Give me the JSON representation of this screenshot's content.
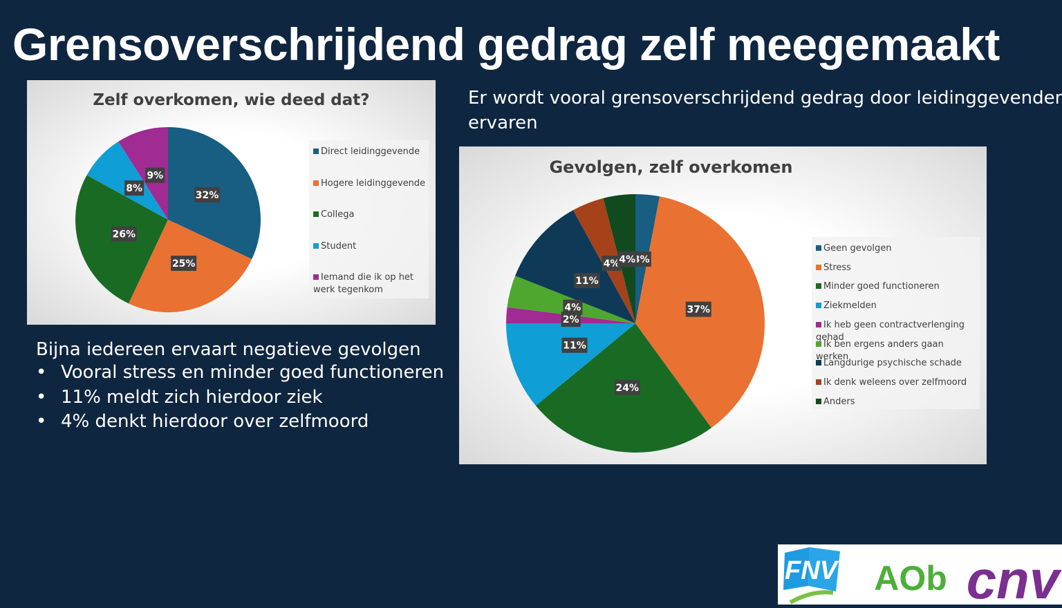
{
  "title": "Grensoverschrijdend gedrag zelf meegemaakt",
  "right_note": [
    "Er wordt vooral grensoverschrijdend gedrag door leidinggevenden",
    "ervaren"
  ],
  "left_note": {
    "heading": "Bijna iedereen ervaart negatieve gevolgen",
    "bullets": [
      "Vooral stress en minder goed functioneren",
      "11% meldt zich hierdoor ziek",
      "4% denkt hierdoor over zelfmoord"
    ]
  },
  "logos": {
    "fnv": "FNV",
    "aob": "AOb",
    "cnv": "CNV"
  },
  "chart_data": [
    {
      "type": "pie",
      "title": "Zelf overkomen, wie deed dat?",
      "categories": [
        "Direct leidinggevende",
        "Hogere leidinggevende",
        "Collega",
        "Student",
        "Iemand die ik op het werk tegenkom"
      ],
      "values": [
        32,
        25,
        26,
        8,
        9
      ],
      "labels": [
        "32%",
        "25%",
        "26%",
        "8%",
        "9%"
      ],
      "colors": [
        "#185d82",
        "#e97132",
        "#196b24",
        "#0f9ed5",
        "#a02b93"
      ],
      "legend": "right"
    },
    {
      "type": "pie",
      "title": "Gevolgen, zelf overkomen",
      "categories": [
        "Geen gevolgen",
        "Stress",
        "Minder goed functioneren",
        "Ziekmelden",
        "Ik heb geen contractverlenging gehad",
        "Ik ben ergens anders gaan werken",
        "Langdurige psychische schade",
        "Ik denk weleens over zelfmoord",
        "Anders"
      ],
      "values": [
        3,
        37,
        24,
        11,
        2,
        4,
        11,
        4,
        4
      ],
      "labels": [
        "3%",
        "37%",
        "24%",
        "11%",
        "2%",
        "4%",
        "11%",
        "4%",
        "4%"
      ],
      "colors": [
        "#185d82",
        "#e97132",
        "#196b24",
        "#0f9ed5",
        "#a02b93",
        "#4ea72e",
        "#0e3a58",
        "#a5421a",
        "#124a20"
      ],
      "legend": "right"
    }
  ]
}
